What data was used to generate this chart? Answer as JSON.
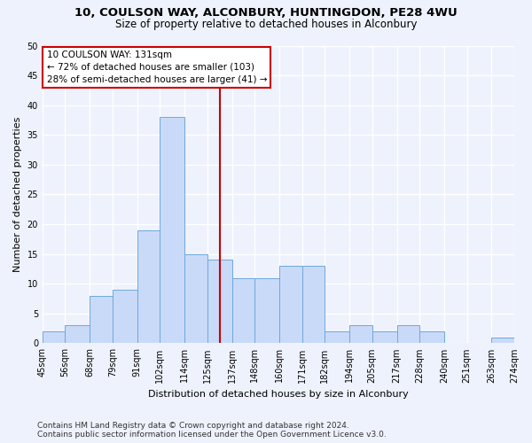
{
  "title_line1": "10, COULSON WAY, ALCONBURY, HUNTINGDON, PE28 4WU",
  "title_line2": "Size of property relative to detached houses in Alconbury",
  "xlabel": "Distribution of detached houses by size in Alconbury",
  "ylabel": "Number of detached properties",
  "bar_color": "#c9daf8",
  "bar_edge_color": "#6fa8dc",
  "vline_x": 131,
  "vline_color": "#cc0000",
  "annotation_line1": "10 COULSON WAY: 131sqm",
  "annotation_line2": "← 72% of detached houses are smaller (103)",
  "annotation_line3": "28% of semi-detached houses are larger (41) →",
  "annotation_box_color": "#cc0000",
  "bins": [
    45,
    56,
    68,
    79,
    91,
    102,
    114,
    125,
    137,
    148,
    160,
    171,
    182,
    194,
    205,
    217,
    228,
    240,
    251,
    263,
    274
  ],
  "bar_heights": [
    2,
    3,
    8,
    9,
    19,
    38,
    15,
    14,
    11,
    11,
    13,
    13,
    2,
    3,
    2,
    3,
    2,
    0,
    0,
    1
  ],
  "ylim": [
    0,
    50
  ],
  "yticks": [
    0,
    5,
    10,
    15,
    20,
    25,
    30,
    35,
    40,
    45,
    50
  ],
  "footer_line1": "Contains HM Land Registry data © Crown copyright and database right 2024.",
  "footer_line2": "Contains public sector information licensed under the Open Government Licence v3.0.",
  "background_color": "#eef2fc",
  "grid_color": "#ffffff",
  "title_fontsize": 9.5,
  "subtitle_fontsize": 8.5,
  "axis_label_fontsize": 8,
  "tick_fontsize": 7,
  "footer_fontsize": 6.5
}
